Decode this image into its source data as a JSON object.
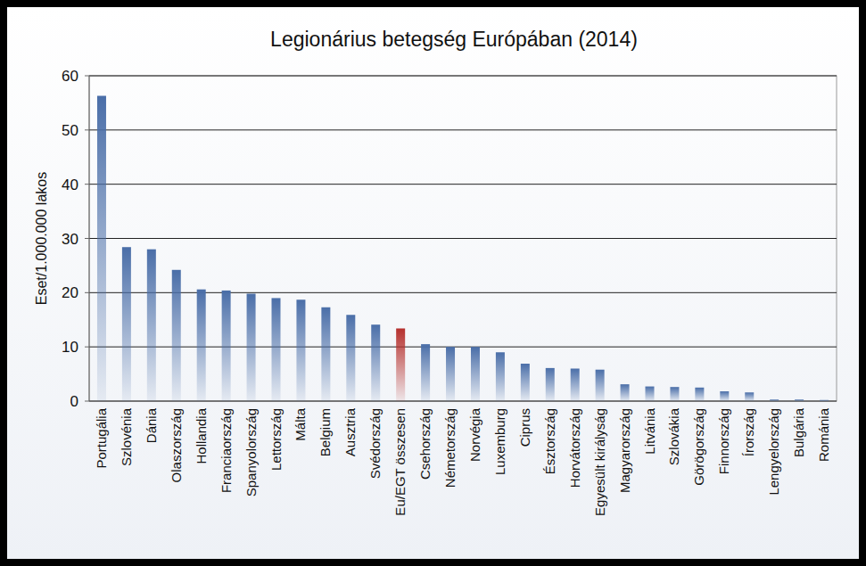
{
  "chart_data": {
    "type": "bar",
    "title": "Legionárius betegség Európában (2014)",
    "y_label": "Eset/1.000.000 lakos",
    "categories": [
      "Portugália",
      "Szlovénia",
      "Dánia",
      "Olaszország",
      "Hollandia",
      "Franciaország",
      "Spanyolország",
      "Lettország",
      "Málta",
      "Belgium",
      "Ausztria",
      "Svédország",
      "Eu/EGT összesen",
      "Csehország",
      "Németország",
      "Norvégia",
      "Luxemburg",
      "Ciprus",
      "Észtország",
      "Horvátország",
      "Egyesült királyság",
      "Magyarország",
      "Litvánia",
      "Szlovákia",
      "Görögország",
      "Finnország",
      "Írország",
      "Lengyelország",
      "Bulgária",
      "Románia"
    ],
    "values": [
      56.3,
      28.4,
      28.0,
      24.2,
      20.6,
      20.4,
      19.8,
      19.0,
      18.7,
      17.3,
      15.9,
      14.1,
      13.4,
      10.5,
      10.0,
      10.0,
      9.0,
      6.9,
      6.1,
      6.0,
      5.8,
      3.1,
      2.7,
      2.6,
      2.5,
      1.8,
      1.6,
      0.3,
      0.3,
      0.2
    ],
    "colors": [
      "#4a6ea8",
      "#4a6ea8",
      "#4a6ea8",
      "#4a6ea8",
      "#4a6ea8",
      "#4a6ea8",
      "#4a6ea8",
      "#4a6ea8",
      "#4a6ea8",
      "#4a6ea8",
      "#4a6ea8",
      "#4a6ea8",
      "#b5302d",
      "#4a6ea8",
      "#4a6ea8",
      "#4a6ea8",
      "#4a6ea8",
      "#4a6ea8",
      "#4a6ea8",
      "#4a6ea8",
      "#4a6ea8",
      "#4a6ea8",
      "#4a6ea8",
      "#4a6ea8",
      "#4a6ea8",
      "#4a6ea8",
      "#4a6ea8",
      "#4a6ea8",
      "#4a6ea8",
      "#4a6ea8"
    ],
    "ylim": [
      0,
      60
    ],
    "yticks": [
      0,
      10,
      20,
      30,
      40,
      50,
      60
    ],
    "grid": true
  }
}
